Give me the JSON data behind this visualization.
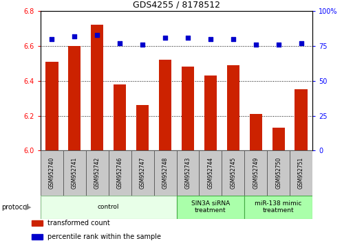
{
  "title": "GDS4255 / 8178512",
  "samples": [
    "GSM952740",
    "GSM952741",
    "GSM952742",
    "GSM952746",
    "GSM952747",
    "GSM952748",
    "GSM952743",
    "GSM952744",
    "GSM952745",
    "GSM952749",
    "GSM952750",
    "GSM952751"
  ],
  "bar_values": [
    6.51,
    6.6,
    6.72,
    6.38,
    6.26,
    6.52,
    6.48,
    6.43,
    6.49,
    6.21,
    6.13,
    6.35
  ],
  "percentile_values": [
    80,
    82,
    83,
    77,
    76,
    81,
    81,
    80,
    80,
    76,
    76,
    77
  ],
  "bar_color": "#cc2200",
  "percentile_color": "#0000cc",
  "ylim_left": [
    6.0,
    6.8
  ],
  "ylim_right": [
    0,
    100
  ],
  "yticks_left": [
    6.0,
    6.2,
    6.4,
    6.6,
    6.8
  ],
  "yticks_right": [
    0,
    25,
    50,
    75,
    100
  ],
  "groups": [
    {
      "label": "control",
      "start": 0,
      "end": 6,
      "light_color": "#dfffdf",
      "border_color": "#88cc88"
    },
    {
      "label": "SIN3A siRNA\ntreatment",
      "start": 6,
      "end": 9,
      "light_color": "#bbffbb",
      "border_color": "#44aa44"
    },
    {
      "label": "miR-138 mimic\ntreatment",
      "start": 9,
      "end": 12,
      "light_color": "#bbffbb",
      "border_color": "#44aa44"
    }
  ],
  "protocol_label": "protocol",
  "legend_bar_label": "transformed count",
  "legend_pct_label": "percentile rank within the sample",
  "background_color": "#ffffff",
  "bar_width": 0.55
}
